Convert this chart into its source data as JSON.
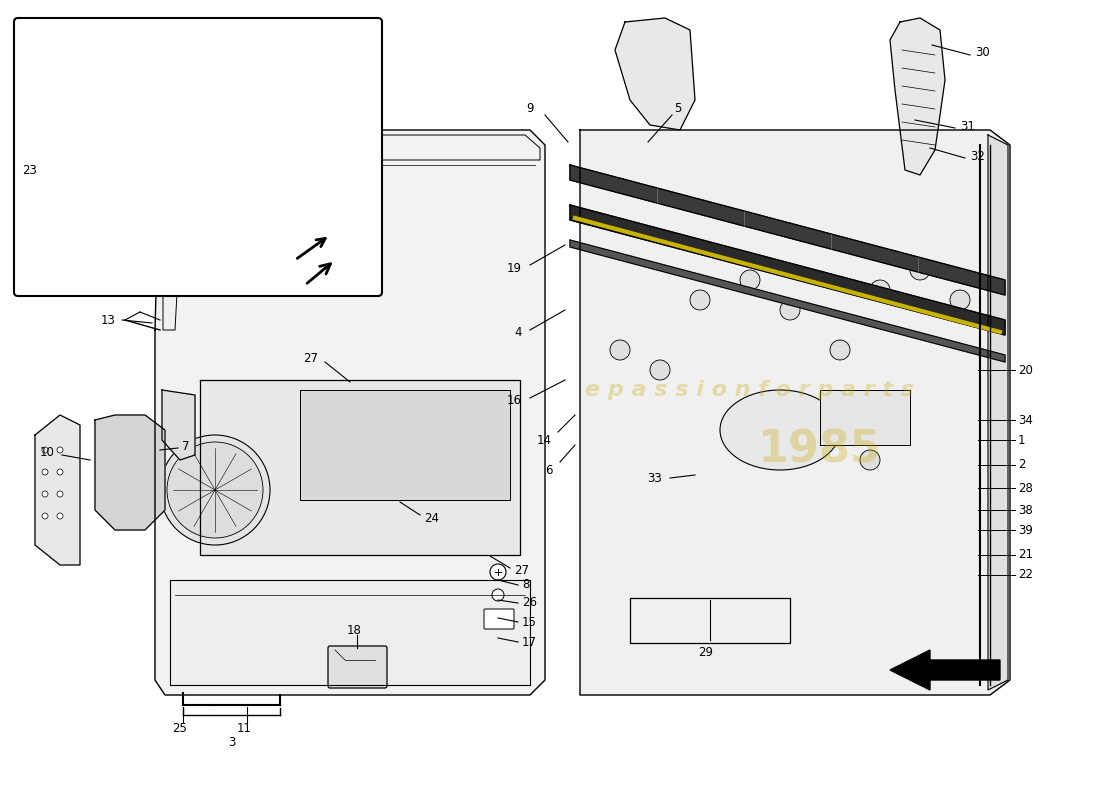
{
  "bg": "#ffffff",
  "lc": "#000000",
  "wm1": "e p a s s i o n f o r p a r t s",
  "wm2": "1985",
  "wm_color": "#c8a800",
  "wm_alpha": 0.3
}
